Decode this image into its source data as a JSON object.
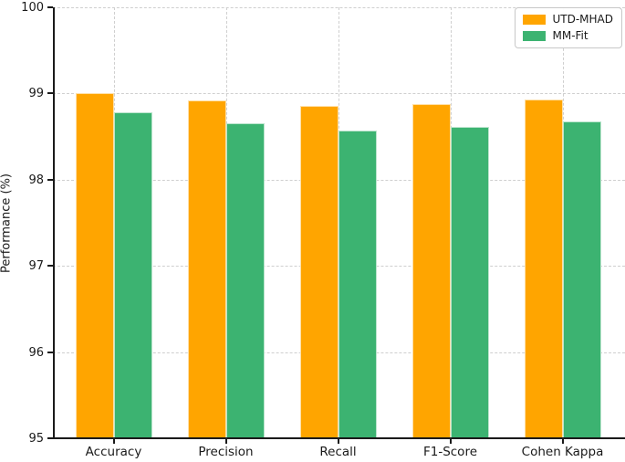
{
  "chart_data": {
    "type": "bar",
    "title": "",
    "xlabel": "",
    "ylabel": "Performance (%)",
    "categories": [
      "Accuracy",
      "Precision",
      "Recall",
      "F1-Score",
      "Cohen Kappa"
    ],
    "series": [
      {
        "name": "UTD-MHAD",
        "color": "#FFA500",
        "values": [
          99.0,
          98.92,
          98.86,
          98.88,
          98.93
        ]
      },
      {
        "name": "MM-Fit",
        "color": "#3CB371",
        "values": [
          98.78,
          98.66,
          98.57,
          98.61,
          98.68
        ]
      }
    ],
    "ylim": [
      95,
      100
    ],
    "y_ticks": [
      95,
      96,
      97,
      98,
      99,
      100
    ],
    "grid": true,
    "grid_style": "dashed",
    "grid_color": "#cfcfcf",
    "legend_position": "upper right",
    "axis_color": "#1a1a1a",
    "background_color": "#ffffff"
  }
}
